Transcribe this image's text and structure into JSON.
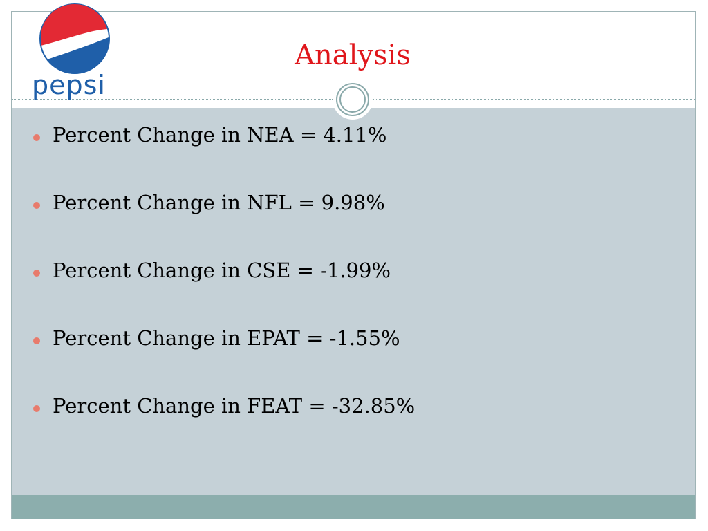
{
  "slide": {
    "title": "Analysis",
    "logo": {
      "wordmark": "pepsi",
      "icon": "pepsi-globe-icon"
    },
    "bullets": [
      {
        "text": "Percent Change in NEA = 4.11%"
      },
      {
        "text": "Percent Change in NFL = 9.98%"
      },
      {
        "text": "Percent Change in CSE = -1.99%"
      },
      {
        "text": "Percent Change in EPAT = -1.55%"
      },
      {
        "text": "Percent Change in FEAT = -32.85%"
      }
    ]
  },
  "colors": {
    "title": "#e0161b",
    "body_background": "#c5d1d7",
    "footer_band": "#8caead",
    "bullet": "#e87b6c",
    "logo_red": "#e32934",
    "logo_blue": "#1f5fa9",
    "logo_wordmark": "#1f5fa9"
  }
}
